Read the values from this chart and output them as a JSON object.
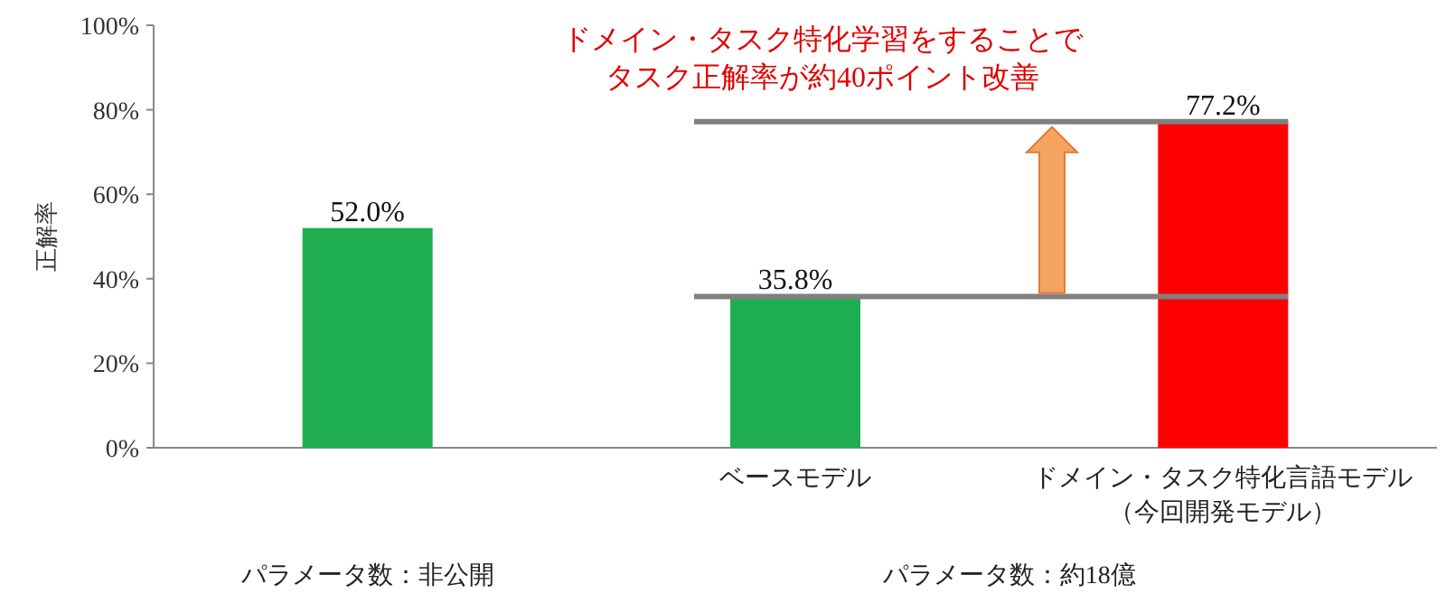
{
  "chart_data": {
    "type": "bar",
    "categories": [
      null,
      "ベースモデル",
      "ドメイン・タスク特化言語モデル（今回開発モデル）"
    ],
    "values": [
      52.0,
      35.8,
      77.2
    ],
    "colors": [
      "#1fae4f",
      "#1fae4f",
      "#ff0000"
    ],
    "value_labels": [
      "52.0%",
      "35.8%",
      "77.2%"
    ],
    "ylabel": "正解率",
    "ylim": [
      0,
      100
    ],
    "yticks": [
      {
        "value": 0,
        "label": "0%"
      },
      {
        "value": 20,
        "label": "20%"
      },
      {
        "value": 40,
        "label": "40%"
      },
      {
        "value": 60,
        "label": "60%"
      },
      {
        "value": 80,
        "label": "80%"
      },
      {
        "value": 100,
        "label": "100%"
      }
    ],
    "ref_lines": [
      {
        "axis": "y",
        "value": 77.2,
        "color": "#808080"
      },
      {
        "axis": "y",
        "value": 35.8,
        "color": "#808080"
      }
    ],
    "annotations": [
      "ドメイン・タスク特化学習をすることで",
      "タスク正解率が約40ポイント改善",
      "パラメータ数：非公開",
      "パラメータ数：約18億"
    ],
    "grid": false
  }
}
